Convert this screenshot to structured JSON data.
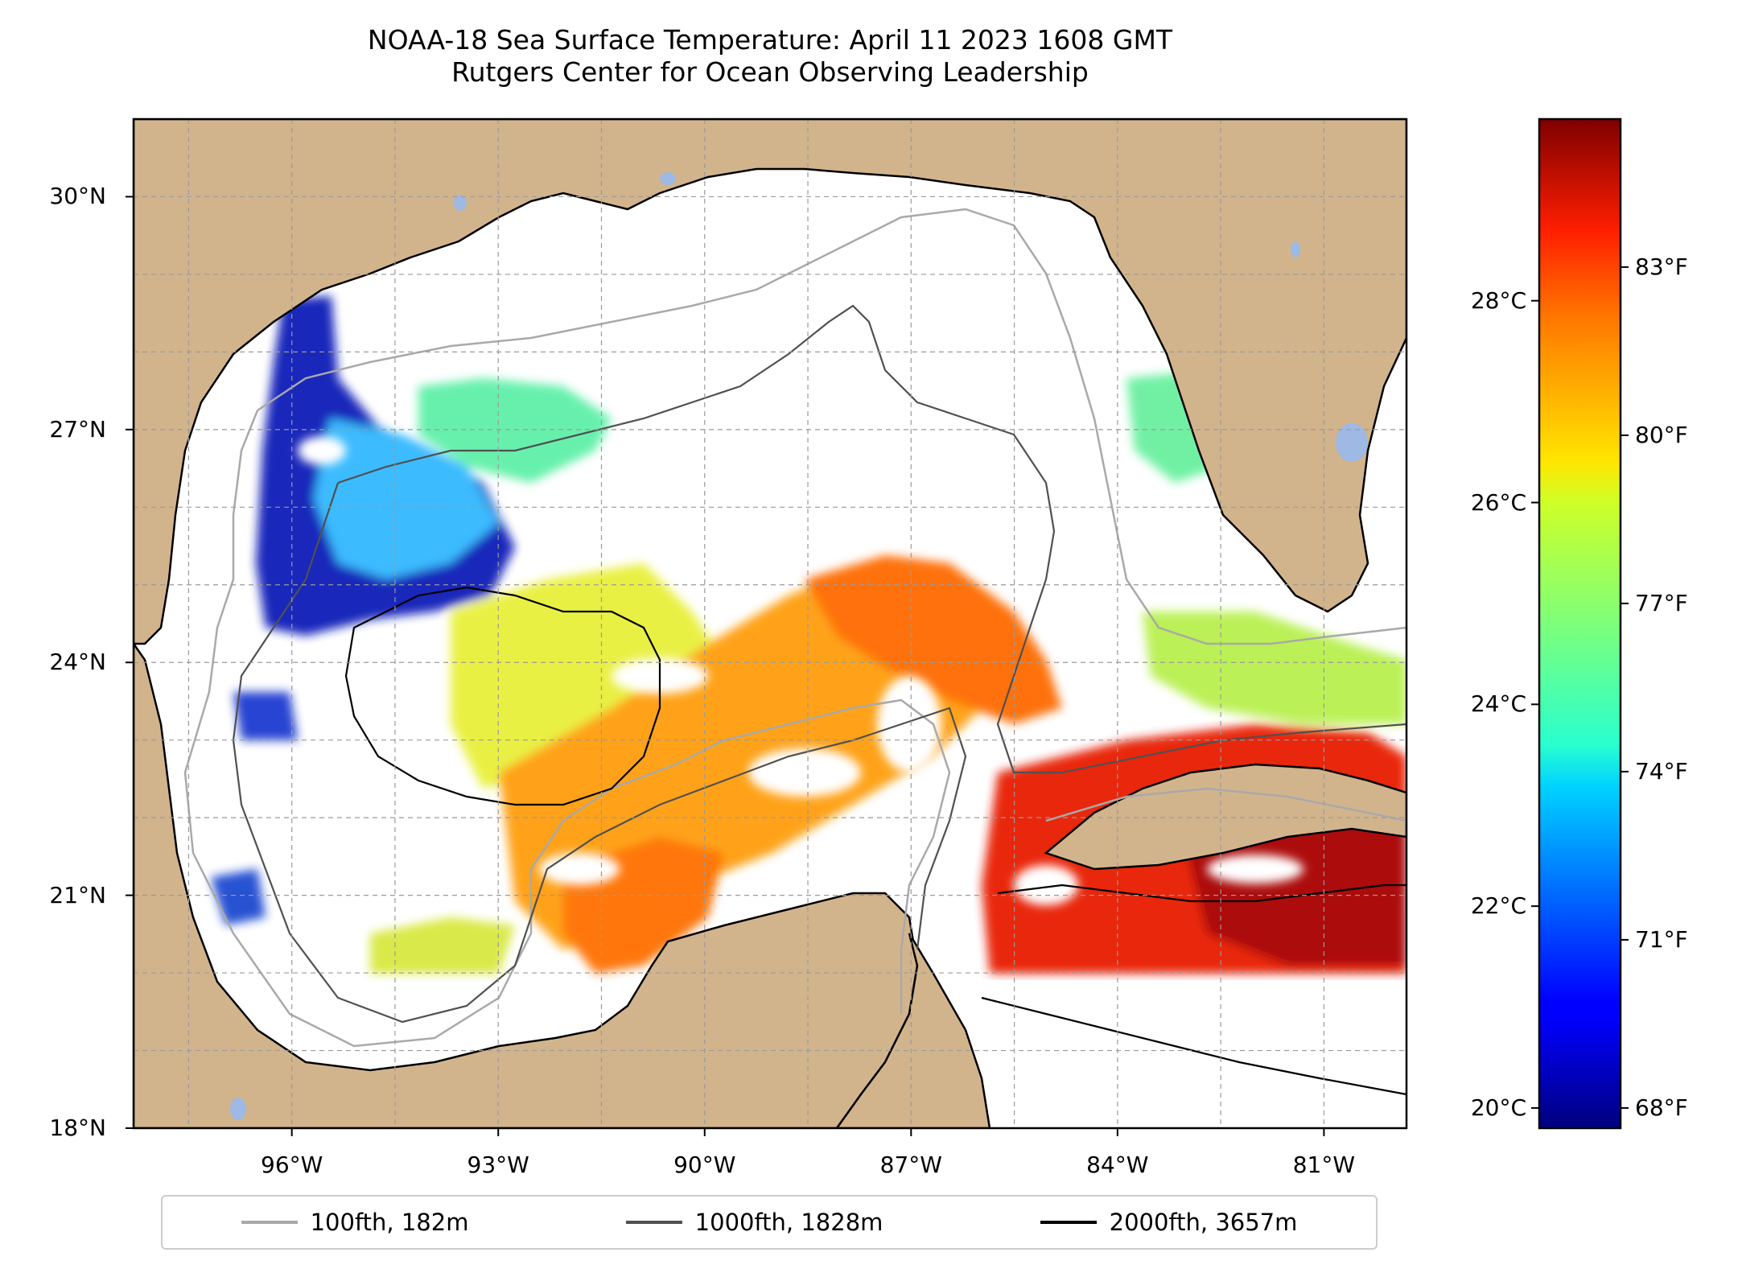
{
  "title": {
    "line1": "NOAA-18 Sea Surface Temperature: April 11 2023 1608 GMT",
    "line2": "Rutgers Center for Ocean Observing Leadership"
  },
  "map": {
    "extent_lon": [
      -98.3,
      -79.8
    ],
    "extent_lat": [
      18.0,
      31.0
    ],
    "land_color": "#D2B48C",
    "lake_color": "#9DB9E4",
    "grid": "dashed"
  },
  "axes": {
    "lat_ticks": [
      {
        "value": 30,
        "label": "30°N"
      },
      {
        "value": 27,
        "label": "27°N"
      },
      {
        "value": 24,
        "label": "24°N"
      },
      {
        "value": 21,
        "label": "21°N"
      },
      {
        "value": 18,
        "label": "18°N"
      }
    ],
    "lon_ticks": [
      {
        "value": -96,
        "label": "96°W"
      },
      {
        "value": -93,
        "label": "93°W"
      },
      {
        "value": -90,
        "label": "90°W"
      },
      {
        "value": -87,
        "label": "87°W"
      },
      {
        "value": -84,
        "label": "84°W"
      },
      {
        "value": -81,
        "label": "81°W"
      }
    ]
  },
  "colorbar": {
    "colormap": "jet",
    "range_celsius": [
      19.8,
      29.8
    ],
    "celsius_ticks": [
      {
        "value": 28,
        "label": "28°C"
      },
      {
        "value": 26,
        "label": "26°C"
      },
      {
        "value": 24,
        "label": "24°C"
      },
      {
        "value": 22,
        "label": "22°C"
      },
      {
        "value": 20,
        "label": "20°C"
      }
    ],
    "fahrenheit_ticks": [
      {
        "value": 83,
        "label": "83°F"
      },
      {
        "value": 80,
        "label": "80°F"
      },
      {
        "value": 77,
        "label": "77°F"
      },
      {
        "value": 74,
        "label": "74°F"
      },
      {
        "value": 71,
        "label": "71°F"
      },
      {
        "value": 68,
        "label": "68°F"
      }
    ]
  },
  "legend": {
    "placement": "bottom-center",
    "items": [
      {
        "label": "100fth, 182m",
        "color": "#A9A9A9"
      },
      {
        "label": "1000fth, 1828m",
        "color": "#505050"
      },
      {
        "label": "2000fth, 3657m",
        "color": "#000000"
      }
    ]
  }
}
